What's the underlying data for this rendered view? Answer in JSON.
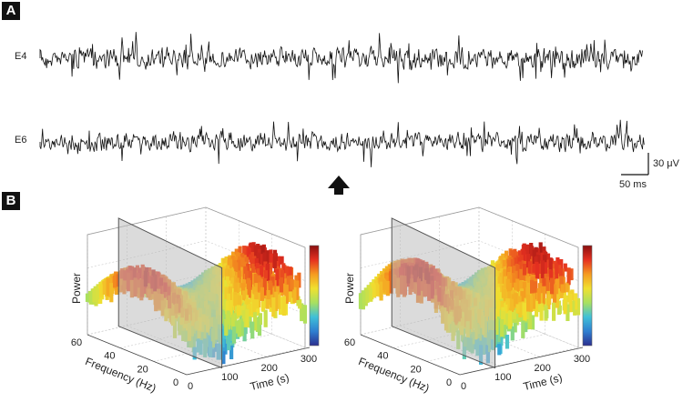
{
  "panels": {
    "a_label": "A",
    "b_label": "B"
  },
  "traces": [
    {
      "label": "E4"
    },
    {
      "label": "E6"
    }
  ],
  "scale_bar": {
    "voltage": "30 μV",
    "time": "50 ms"
  },
  "stimulus_marker_icon": "up-arrow-icon",
  "plots": [
    {
      "zlabel": "Power",
      "xlabel": "Frequency (Hz)",
      "ylabel": "Time (s)",
      "freq_ticks": [
        "60",
        "40",
        "20",
        "0"
      ],
      "time_ticks": [
        "0",
        "100",
        "200",
        "300"
      ]
    },
    {
      "zlabel": "Power",
      "xlabel": "Frequency (Hz)",
      "ylabel": "Time (s)",
      "freq_ticks": [
        "60",
        "40",
        "20",
        "0"
      ],
      "time_ticks": [
        "0",
        "100",
        "200",
        "300"
      ]
    }
  ],
  "colormap": [
    "#2b2f8f",
    "#2f7fd0",
    "#40c0d8",
    "#a8e060",
    "#f0e030",
    "#f59a20",
    "#e53020",
    "#8a1010"
  ]
}
